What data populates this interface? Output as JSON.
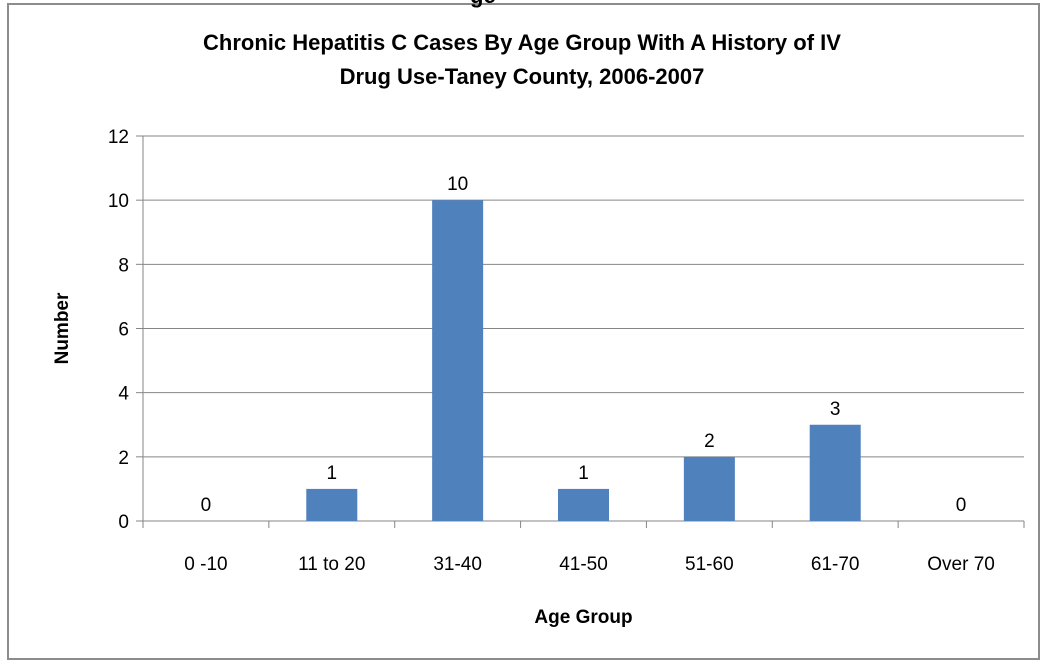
{
  "title_fragment": "ge",
  "chart_data": {
    "type": "bar",
    "title_lines": [
      "Chronic Hepatitis C Cases By Age Group With A History of IV",
      "Drug Use-Taney County, 2006-2007"
    ],
    "xlabel": "Age Group",
    "ylabel": "Number",
    "categories": [
      "0 -10",
      "11 to 20",
      "31-40",
      "41-50",
      "51-60",
      "61-70",
      "Over 70"
    ],
    "values": [
      0,
      1,
      10,
      1,
      2,
      3,
      0
    ],
    "data_labels": [
      "0",
      "1",
      "10",
      "1",
      "2",
      "3",
      "0"
    ],
    "ylim": [
      0,
      12
    ],
    "yticks": [
      0,
      2,
      4,
      6,
      8,
      10,
      12
    ],
    "grid": true,
    "legend": "none",
    "bar_color": "#4f81bd",
    "grid_color": "#868686"
  }
}
